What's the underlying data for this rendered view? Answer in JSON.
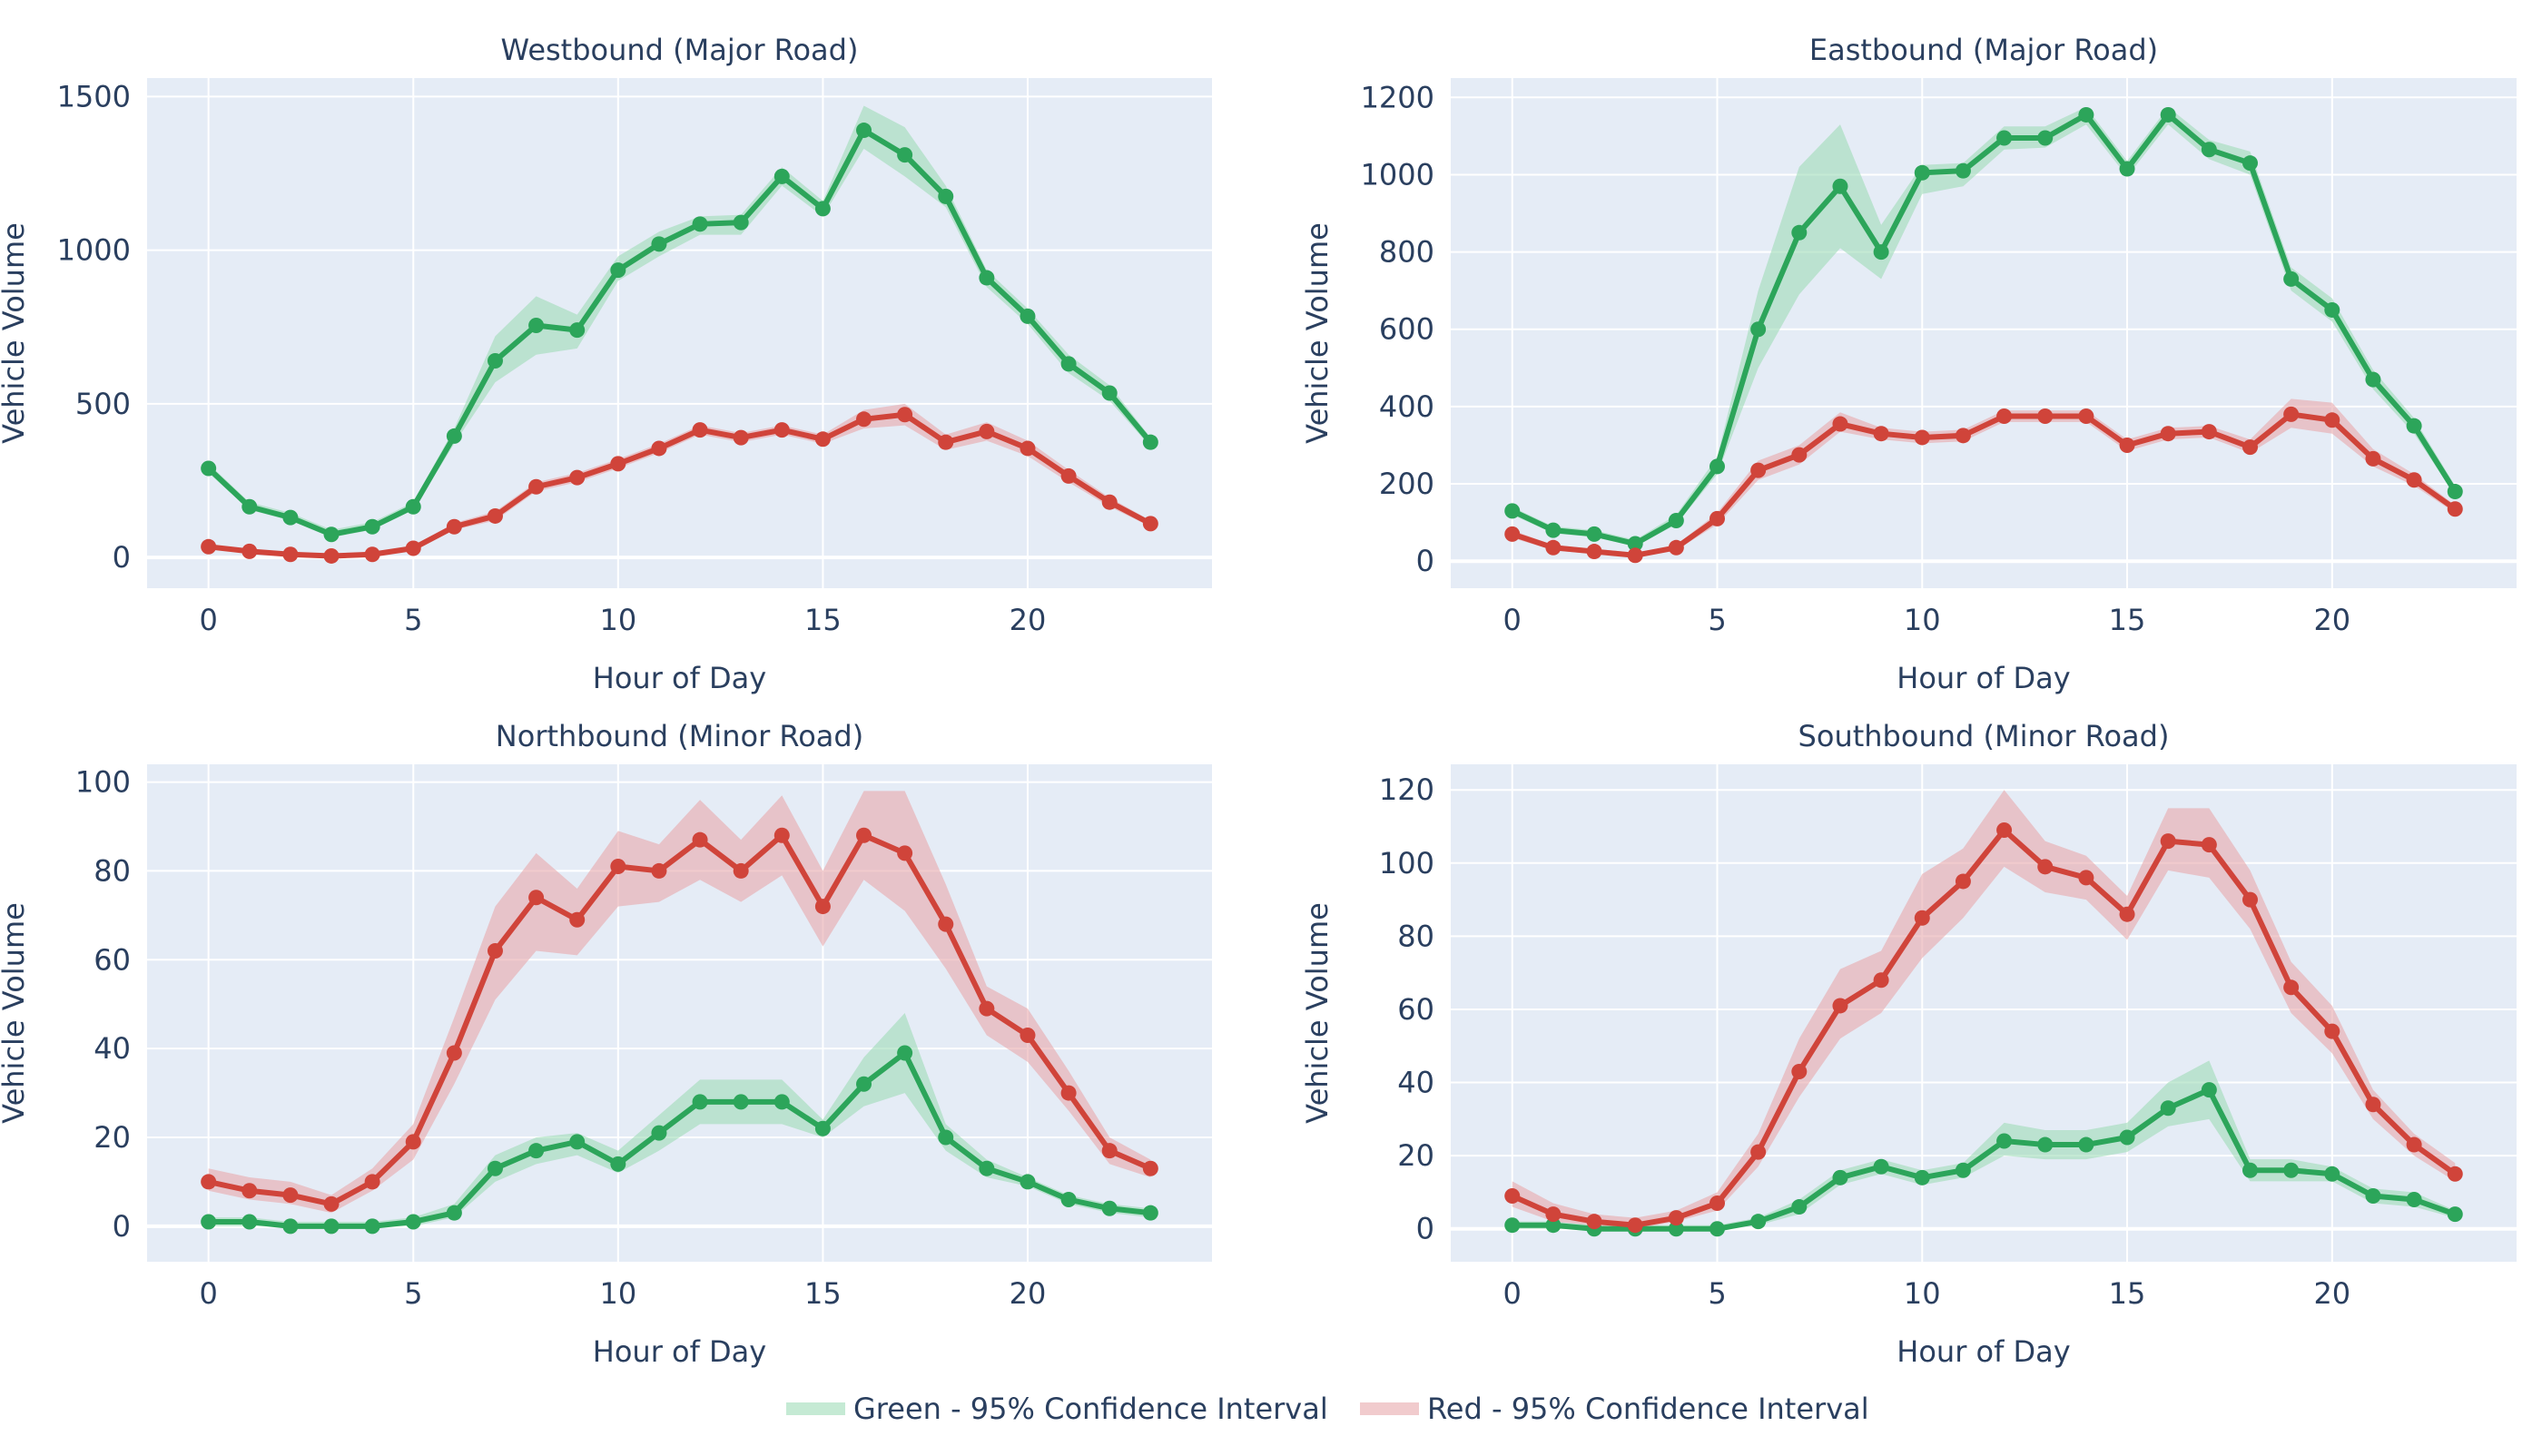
{
  "colors": {
    "green": "#2ca55a",
    "red": "#d0443a",
    "green_band": "#9fdcb8",
    "red_band": "#e8a8ab",
    "plot_bg": "#e5ecf6",
    "grid": "#ffffff",
    "text": "#2a3f5f"
  },
  "legend": {
    "placement": "bottom-center",
    "items": [
      {
        "label": "Green - 95% Confidence Interval",
        "color_key": "green_band"
      },
      {
        "label": "Red - 95% Confidence Interval",
        "color_key": "red_band"
      }
    ]
  },
  "chart_data": [
    {
      "type": "line",
      "title": "Westbound (Major Road)",
      "xlabel": "Hour of Day",
      "ylabel": "Vehicle Volume",
      "xlim": [
        -1.5,
        24.5
      ],
      "ylim": [
        -100,
        1560
      ],
      "xticks": [
        0,
        5,
        10,
        15,
        20
      ],
      "yticks": [
        0,
        500,
        1000,
        1500
      ],
      "grid": true,
      "x": [
        0,
        1,
        2,
        3,
        4,
        5,
        6,
        7,
        8,
        9,
        10,
        11,
        12,
        13,
        14,
        15,
        16,
        17,
        18,
        19,
        20,
        21,
        22,
        23
      ],
      "series": [
        {
          "color_key": "green",
          "values": [
            290,
            165,
            130,
            75,
            100,
            165,
            395,
            640,
            755,
            740,
            935,
            1020,
            1085,
            1090,
            1240,
            1135,
            1390,
            1310,
            1175,
            910,
            785,
            630,
            535,
            375
          ],
          "lower": [
            275,
            155,
            120,
            65,
            90,
            155,
            370,
            570,
            660,
            680,
            900,
            980,
            1050,
            1050,
            1210,
            1110,
            1330,
            1240,
            1140,
            880,
            760,
            600,
            510,
            360
          ],
          "upper": [
            305,
            180,
            145,
            90,
            115,
            180,
            420,
            720,
            850,
            790,
            980,
            1060,
            1110,
            1115,
            1270,
            1160,
            1470,
            1400,
            1210,
            935,
            810,
            660,
            560,
            390
          ]
        },
        {
          "color_key": "red",
          "values": [
            35,
            20,
            10,
            5,
            10,
            30,
            100,
            135,
            230,
            260,
            305,
            355,
            415,
            390,
            415,
            385,
            450,
            465,
            375,
            410,
            355,
            265,
            180,
            110
          ],
          "lower": [
            30,
            15,
            5,
            2,
            5,
            25,
            90,
            120,
            215,
            245,
            290,
            340,
            400,
            375,
            400,
            370,
            420,
            430,
            350,
            380,
            330,
            245,
            165,
            100
          ],
          "upper": [
            42,
            27,
            16,
            10,
            16,
            38,
            112,
            150,
            245,
            275,
            320,
            370,
            430,
            405,
            430,
            400,
            480,
            500,
            400,
            440,
            380,
            285,
            195,
            120
          ]
        }
      ]
    },
    {
      "type": "line",
      "title": "Eastbound (Major Road)",
      "xlabel": "Hour of Day",
      "ylabel": "Vehicle Volume",
      "xlim": [
        -1.5,
        24.5
      ],
      "ylim": [
        -70,
        1250
      ],
      "xticks": [
        0,
        5,
        10,
        15,
        20
      ],
      "yticks": [
        0,
        200,
        400,
        600,
        800,
        1000,
        1200
      ],
      "grid": true,
      "x": [
        0,
        1,
        2,
        3,
        4,
        5,
        6,
        7,
        8,
        9,
        10,
        11,
        12,
        13,
        14,
        15,
        16,
        17,
        18,
        19,
        20,
        21,
        22,
        23
      ],
      "series": [
        {
          "color_key": "green",
          "values": [
            130,
            80,
            70,
            45,
            105,
            245,
            600,
            850,
            970,
            800,
            1005,
            1010,
            1095,
            1095,
            1155,
            1015,
            1155,
            1065,
            1030,
            730,
            650,
            470,
            350,
            180
          ],
          "lower": [
            120,
            72,
            62,
            38,
            95,
            225,
            500,
            690,
            810,
            730,
            950,
            970,
            1065,
            1070,
            1130,
            995,
            1130,
            1040,
            1000,
            700,
            620,
            445,
            330,
            170
          ],
          "upper": [
            140,
            90,
            80,
            55,
            120,
            270,
            700,
            1020,
            1130,
            870,
            1025,
            1030,
            1125,
            1125,
            1175,
            1035,
            1175,
            1090,
            1060,
            760,
            680,
            495,
            370,
            195
          ]
        },
        {
          "color_key": "red",
          "values": [
            70,
            35,
            25,
            15,
            35,
            110,
            235,
            275,
            355,
            330,
            320,
            325,
            375,
            375,
            375,
            300,
            330,
            335,
            295,
            380,
            365,
            265,
            210,
            135
          ],
          "lower": [
            60,
            28,
            18,
            10,
            28,
            95,
            210,
            250,
            335,
            315,
            305,
            310,
            360,
            360,
            360,
            285,
            315,
            320,
            280,
            345,
            330,
            245,
            195,
            125
          ],
          "upper": [
            80,
            42,
            32,
            22,
            42,
            125,
            260,
            300,
            385,
            345,
            335,
            340,
            390,
            390,
            390,
            315,
            345,
            350,
            315,
            420,
            410,
            290,
            225,
            145
          ]
        }
      ]
    },
    {
      "type": "line",
      "title": "Northbound (Minor Road)",
      "xlabel": "Hour of Day",
      "ylabel": "Vehicle Volume",
      "xlim": [
        -1.5,
        24.5
      ],
      "ylim": [
        -8,
        104
      ],
      "xticks": [
        0,
        5,
        10,
        15,
        20
      ],
      "yticks": [
        0,
        20,
        40,
        60,
        80,
        100
      ],
      "grid": true,
      "x": [
        0,
        1,
        2,
        3,
        4,
        5,
        6,
        7,
        8,
        9,
        10,
        11,
        12,
        13,
        14,
        15,
        16,
        17,
        18,
        19,
        20,
        21,
        22,
        23
      ],
      "series": [
        {
          "color_key": "green",
          "values": [
            1,
            1,
            0,
            0,
            0,
            1,
            3,
            13,
            17,
            19,
            14,
            21,
            28,
            28,
            28,
            22,
            32,
            39,
            20,
            13,
            10,
            6,
            4,
            3
          ],
          "lower": [
            0,
            0,
            0,
            0,
            0,
            0,
            2,
            10,
            14,
            16,
            12,
            17,
            23,
            23,
            23,
            20,
            27,
            30,
            17,
            11,
            9,
            5,
            3,
            2
          ],
          "upper": [
            2,
            2,
            1,
            1,
            1,
            2,
            5,
            16,
            20,
            21,
            17,
            25,
            33,
            33,
            33,
            24,
            38,
            48,
            23,
            15,
            11,
            7,
            5,
            4
          ]
        },
        {
          "color_key": "red",
          "values": [
            10,
            8,
            7,
            5,
            10,
            19,
            39,
            62,
            74,
            69,
            81,
            80,
            87,
            80,
            88,
            72,
            88,
            84,
            68,
            49,
            43,
            30,
            17,
            13
          ],
          "lower": [
            8,
            6,
            5,
            3,
            8,
            15,
            32,
            51,
            62,
            61,
            72,
            73,
            78,
            73,
            79,
            63,
            78,
            71,
            58,
            43,
            37,
            26,
            14,
            11
          ],
          "upper": [
            13,
            11,
            10,
            7,
            13,
            23,
            47,
            72,
            84,
            76,
            89,
            86,
            96,
            87,
            97,
            80,
            98,
            98,
            77,
            54,
            49,
            35,
            20,
            15
          ]
        }
      ]
    },
    {
      "type": "line",
      "title": "Southbound (Minor Road)",
      "xlabel": "Hour of Day",
      "ylabel": "Vehicle Volume",
      "xlim": [
        -1.5,
        24.5
      ],
      "ylim": [
        -9,
        127
      ],
      "xticks": [
        0,
        5,
        10,
        15,
        20
      ],
      "yticks": [
        0,
        20,
        40,
        60,
        80,
        100,
        120
      ],
      "grid": true,
      "x": [
        0,
        1,
        2,
        3,
        4,
        5,
        6,
        7,
        8,
        9,
        10,
        11,
        12,
        13,
        14,
        15,
        16,
        17,
        18,
        19,
        20,
        21,
        22,
        23
      ],
      "series": [
        {
          "color_key": "green",
          "values": [
            1,
            1,
            0,
            0,
            0,
            0,
            2,
            6,
            14,
            17,
            14,
            16,
            24,
            23,
            23,
            25,
            33,
            38,
            16,
            16,
            15,
            9,
            8,
            4
          ],
          "lower": [
            0,
            0,
            0,
            0,
            0,
            0,
            1,
            4,
            12,
            15,
            12,
            14,
            20,
            19,
            19,
            21,
            28,
            30,
            13,
            13,
            13,
            7,
            6,
            3
          ],
          "upper": [
            2,
            2,
            1,
            1,
            1,
            1,
            3,
            8,
            16,
            19,
            16,
            18,
            29,
            27,
            27,
            29,
            40,
            46,
            19,
            19,
            17,
            11,
            10,
            5
          ]
        },
        {
          "color_key": "red",
          "values": [
            9,
            4,
            2,
            1,
            3,
            7,
            21,
            43,
            61,
            68,
            85,
            95,
            109,
            99,
            96,
            86,
            106,
            105,
            90,
            66,
            54,
            34,
            23,
            15
          ],
          "lower": [
            6,
            2,
            1,
            0,
            2,
            5,
            17,
            36,
            52,
            59,
            74,
            85,
            99,
            92,
            90,
            79,
            98,
            96,
            82,
            59,
            48,
            30,
            20,
            13
          ],
          "upper": [
            13,
            7,
            4,
            3,
            5,
            10,
            26,
            52,
            71,
            76,
            97,
            104,
            120,
            106,
            102,
            91,
            115,
            115,
            98,
            73,
            61,
            38,
            26,
            18
          ]
        }
      ]
    }
  ]
}
